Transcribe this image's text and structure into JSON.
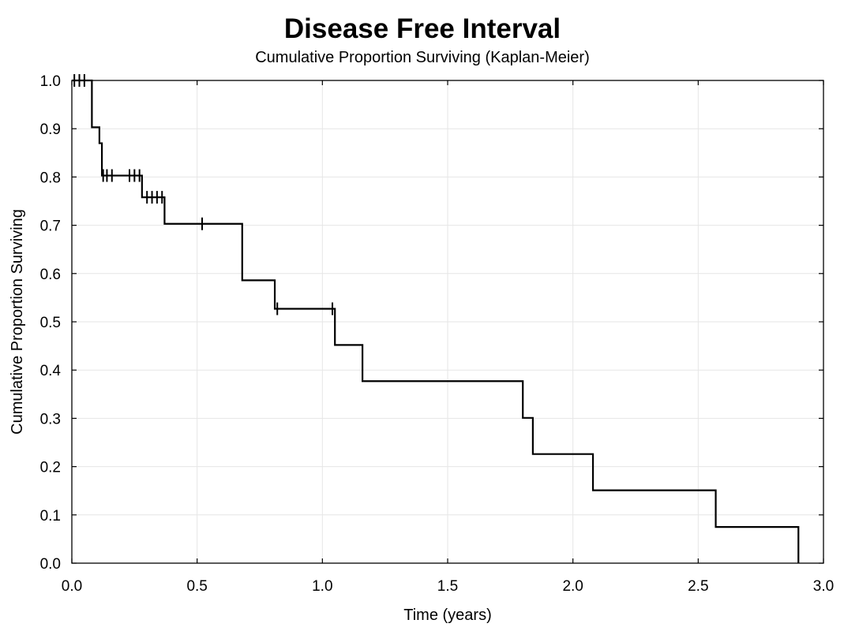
{
  "chart_data": {
    "type": "line",
    "subtype": "kaplan-meier-step",
    "title": "Disease Free Interval",
    "subtitle": "Cumulative Proportion Surviving (Kaplan-Meier)",
    "xlabel": "Time (years)",
    "ylabel": "Cumulative Proportion Surviving",
    "xlim": [
      0.0,
      3.0
    ],
    "ylim": [
      0.0,
      1.0
    ],
    "x_ticks": [
      "0.0",
      "0.5",
      "1.0",
      "1.5",
      "2.0",
      "2.5",
      "3.0"
    ],
    "y_ticks": [
      "0.0",
      "0.1",
      "0.2",
      "0.3",
      "0.4",
      "0.5",
      "0.6",
      "0.7",
      "0.8",
      "0.9",
      "1.0"
    ],
    "grid": true,
    "line_color": "#000000",
    "steps": [
      {
        "x": 0.0,
        "y": 1.0
      },
      {
        "x": 0.08,
        "y": 0.903
      },
      {
        "x": 0.11,
        "y": 0.87
      },
      {
        "x": 0.12,
        "y": 0.803
      },
      {
        "x": 0.28,
        "y": 0.758
      },
      {
        "x": 0.37,
        "y": 0.703
      },
      {
        "x": 0.68,
        "y": 0.586
      },
      {
        "x": 0.81,
        "y": 0.527
      },
      {
        "x": 1.05,
        "y": 0.452
      },
      {
        "x": 1.16,
        "y": 0.377
      },
      {
        "x": 1.8,
        "y": 0.301
      },
      {
        "x": 1.84,
        "y": 0.226
      },
      {
        "x": 2.08,
        "y": 0.151
      },
      {
        "x": 2.57,
        "y": 0.075
      },
      {
        "x": 2.9,
        "y": 0.0
      }
    ],
    "censored": [
      {
        "x": 0.01,
        "y": 1.0
      },
      {
        "x": 0.03,
        "y": 1.0
      },
      {
        "x": 0.05,
        "y": 1.0
      },
      {
        "x": 0.125,
        "y": 0.803
      },
      {
        "x": 0.14,
        "y": 0.803
      },
      {
        "x": 0.16,
        "y": 0.803
      },
      {
        "x": 0.23,
        "y": 0.803
      },
      {
        "x": 0.25,
        "y": 0.803
      },
      {
        "x": 0.27,
        "y": 0.803
      },
      {
        "x": 0.3,
        "y": 0.758
      },
      {
        "x": 0.32,
        "y": 0.758
      },
      {
        "x": 0.34,
        "y": 0.758
      },
      {
        "x": 0.36,
        "y": 0.758
      },
      {
        "x": 0.52,
        "y": 0.703
      },
      {
        "x": 0.82,
        "y": 0.527
      },
      {
        "x": 1.04,
        "y": 0.527
      }
    ]
  }
}
